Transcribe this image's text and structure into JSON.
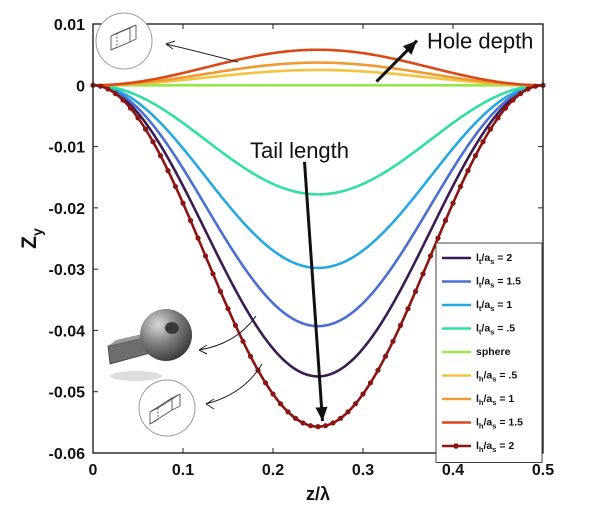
{
  "chart_data": {
    "type": "line",
    "xlabel": "z/λ",
    "ylabel": "Z_y",
    "ylabel_main": "Z",
    "ylabel_sub": "y",
    "xlim": [
      0,
      0.5
    ],
    "ylim": [
      -0.06,
      0.01
    ],
    "xticks": [
      0,
      0.1,
      0.2,
      0.3,
      0.4,
      0.5
    ],
    "xtick_labels": [
      "0",
      "0.1",
      "0.2",
      "0.3",
      "0.4",
      "0.5"
    ],
    "yticks": [
      0.01,
      0,
      -0.01,
      -0.02,
      -0.03,
      -0.04,
      -0.05,
      -0.06
    ],
    "ytick_labels": [
      "0.01",
      "0",
      "-0.01",
      "-0.02",
      "-0.03",
      "-0.04",
      "-0.05",
      "-0.06"
    ],
    "curve_shape": "-A·sin²(2π·z/λ)",
    "legend_position": "lower-right",
    "series": [
      {
        "name": "l_t/a_s = 2",
        "leg_main": "l",
        "leg_sub1": "t",
        "leg_mid": "/a",
        "leg_sub2": "s",
        "leg_tail": " = 2",
        "peak": -0.0475,
        "color": "#3a1c52",
        "marker": false
      },
      {
        "name": "l_t/a_s = 1.5",
        "leg_main": "l",
        "leg_sub1": "t",
        "leg_mid": "/a",
        "leg_sub2": "s",
        "leg_tail": " = 1.5",
        "peak": -0.0393,
        "color": "#4a6fd0",
        "marker": false
      },
      {
        "name": "l_t/a_s = 1",
        "leg_main": "l",
        "leg_sub1": "t",
        "leg_mid": "/a",
        "leg_sub2": "s",
        "leg_tail": " = 1",
        "peak": -0.0298,
        "color": "#26a8e2",
        "marker": false
      },
      {
        "name": "l_t/a_s = .5",
        "leg_main": "l",
        "leg_sub1": "t",
        "leg_mid": "/a",
        "leg_sub2": "s",
        "leg_tail": " = .5",
        "peak": -0.0178,
        "color": "#2fe0a0",
        "marker": false
      },
      {
        "name": "sphere",
        "leg_main": "sphere",
        "leg_sub1": "",
        "leg_mid": "",
        "leg_sub2": "",
        "leg_tail": "",
        "peak": 0.0,
        "color": "#96e84a",
        "marker": false
      },
      {
        "name": "l_h/a_s = .5",
        "leg_main": "l",
        "leg_sub1": "h",
        "leg_mid": "/a",
        "leg_sub2": "s",
        "leg_tail": " = .5",
        "peak": 0.0025,
        "color": "#f2c440",
        "marker": false
      },
      {
        "name": "l_h/a_s = 1",
        "leg_main": "l",
        "leg_sub1": "h",
        "leg_mid": "/a",
        "leg_sub2": "s",
        "leg_tail": " = 1",
        "peak": 0.0037,
        "color": "#f29a32",
        "marker": false
      },
      {
        "name": "l_h/a_s = 1.5",
        "leg_main": "l",
        "leg_sub1": "h",
        "leg_mid": "/a",
        "leg_sub2": "s",
        "leg_tail": " = 1.5",
        "peak": 0.0058,
        "color": "#d94a18",
        "marker": false
      },
      {
        "name": "l_h/a_s = 2",
        "leg_main": "l",
        "leg_sub1": "h",
        "leg_mid": "/a",
        "leg_sub2": "s",
        "leg_tail": " = 2",
        "peak": -0.0557,
        "color": "#8b1512",
        "marker": true
      }
    ],
    "annotations": [
      {
        "text": "Hole depth",
        "arrow_from": [
          0.315,
          0.0006
        ],
        "arrow_to": [
          0.36,
          0.0073
        ]
      },
      {
        "text": "Tail length",
        "arrow_from": [
          0.235,
          -0.0125
        ],
        "arrow_to": [
          0.255,
          -0.0548
        ]
      }
    ]
  }
}
